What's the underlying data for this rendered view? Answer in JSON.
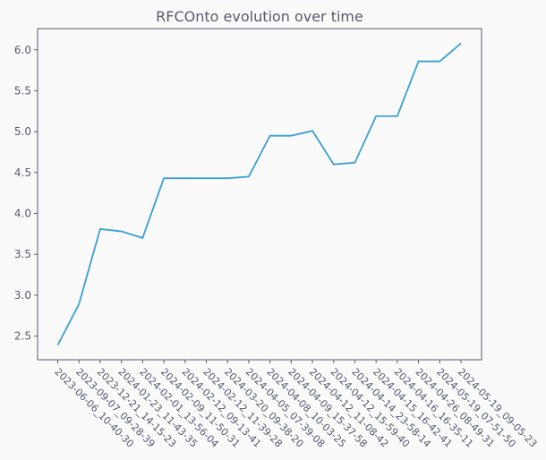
{
  "chart_data": {
    "type": "line",
    "title": "RFCOnto evolution over time",
    "xlabel": "",
    "ylabel": "",
    "categories": [
      "2023-06-06_10-40-30",
      "2023-09-07_09-28-39",
      "2023-12-21_14-15-23",
      "2024-01-23_11-43-35",
      "2024-02-01_13-56-04",
      "2024-02-09_11-50-31",
      "2024-02-12_09-13-41",
      "2024-02-12_11-39-28",
      "2024-03-20_09-38-20",
      "2024-04-05_07-39-08",
      "2024-04-08_10-03-25",
      "2024-04-09_15-37-58",
      "2024-04-12_11-08-42",
      "2024-04-12_15-59-40",
      "2024-04-14_23-58-14",
      "2024-04-15_16-42-41",
      "2024-04-16_16-35-11",
      "2024-04-26_08-49-31",
      "2024-05-19_07-51-50",
      "2024-05-19_09-05-23"
    ],
    "series": [
      {
        "values": [
          2.39,
          2.89,
          3.81,
          3.78,
          3.7,
          4.43,
          4.43,
          4.43,
          4.43,
          4.45,
          4.95,
          4.95,
          5.01,
          4.6,
          4.62,
          5.19,
          5.19,
          5.86,
          5.86,
          6.08
        ]
      }
    ],
    "yticks": [
      2.5,
      3.0,
      3.5,
      4.0,
      4.5,
      5.0,
      5.5,
      6.0
    ],
    "ylim": [
      2.21,
      6.26
    ],
    "grid": false,
    "legend": "none",
    "colors": {
      "line": "#3aa0d0",
      "axis": "#555b6e",
      "text": "#555b6e",
      "background": "#fafafa"
    }
  }
}
